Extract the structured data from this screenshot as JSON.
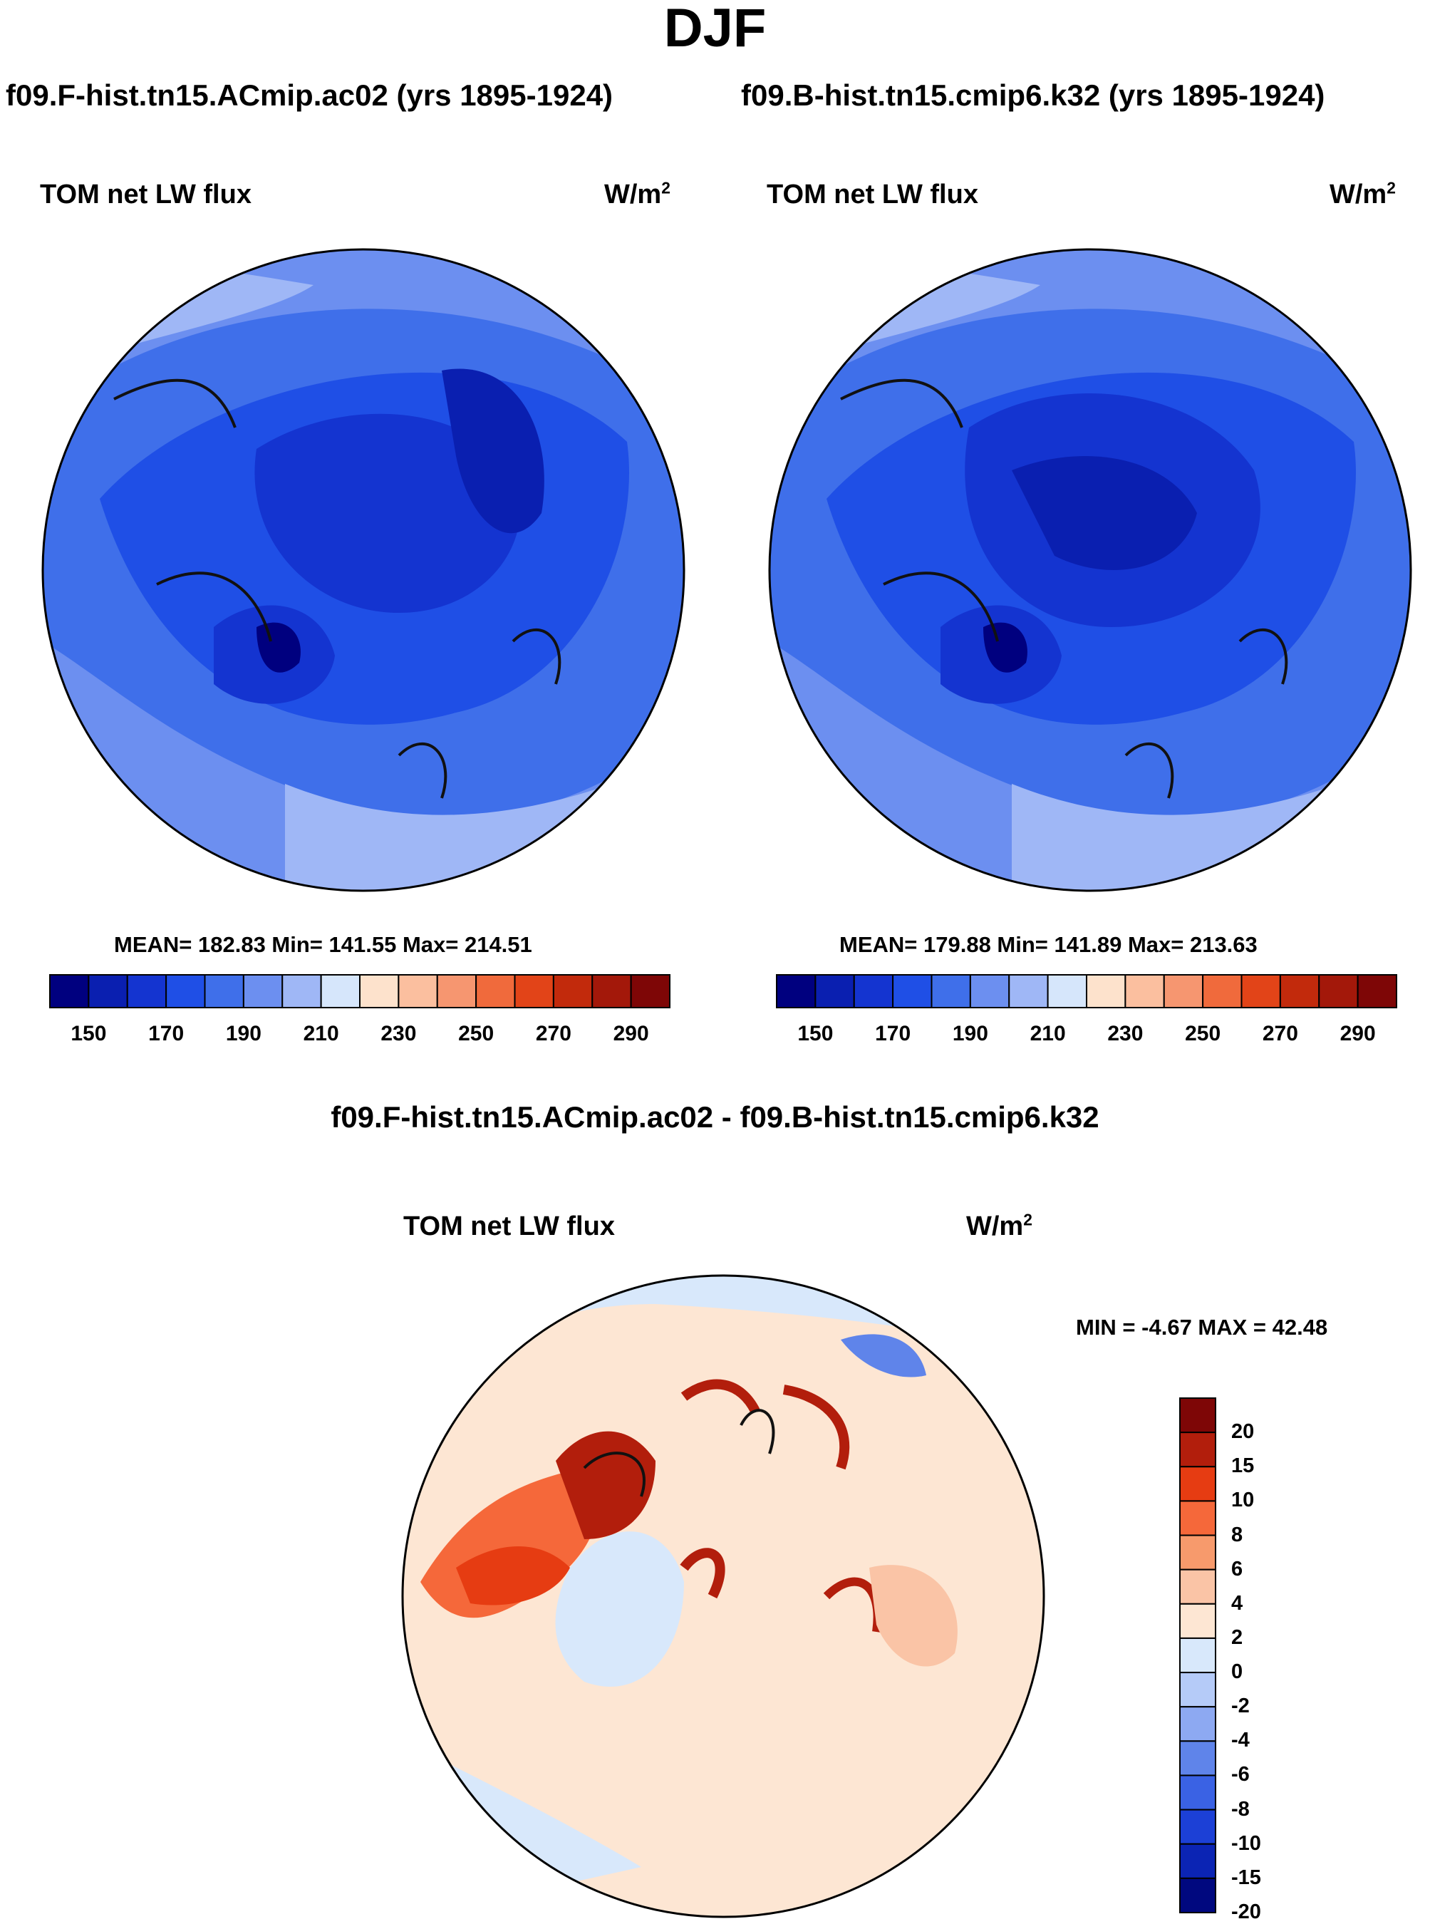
{
  "figure": {
    "title": "DJF",
    "difference_title": "f09.F-hist.tn15.ACmip.ac02 - f09.B-hist.tn15.cmip6.k32"
  },
  "panels": [
    {
      "case_title": "f09.F-hist.tn15.ACmip.ac02 (yrs 1895-1924)",
      "variable": "TOM net LW flux",
      "units_base": "W/m",
      "units_exp": "2",
      "stats": "MEAN= 182.83  Min= 141.55  Max= 214.51"
    },
    {
      "case_title": "f09.B-hist.tn15.cmip6.k32 (yrs 1895-1924)",
      "variable": "TOM net LW flux",
      "units_base": "W/m",
      "units_exp": "2",
      "stats": "MEAN= 179.88  Min= 141.89  Max= 213.63"
    },
    {
      "variable": "TOM net LW flux",
      "units_base": "W/m",
      "units_exp": "2",
      "stats": "MIN =  -4.67 MAX =  42.48"
    }
  ],
  "abs_colorbar": {
    "colors": [
      "#00007f",
      "#0a1fb0",
      "#1434d0",
      "#1f4fe6",
      "#3f6fea",
      "#6c8ff0",
      "#9fb7f6",
      "#d6e6fb",
      "#fde2cc",
      "#fbbf9f",
      "#f69670",
      "#f06a3c",
      "#e24418",
      "#c22a0c",
      "#a3180a",
      "#7e0606"
    ],
    "tick_labels": [
      "150",
      "170",
      "190",
      "210",
      "230",
      "250",
      "270",
      "290"
    ]
  },
  "diff_colorbar": {
    "colors": [
      "#7e0606",
      "#b21e0c",
      "#e63c12",
      "#f5683a",
      "#f79a6c",
      "#fac4a6",
      "#fde6d3",
      "#d8e8fb",
      "#b5cbf8",
      "#8da9f2",
      "#5f84ea",
      "#3a62e4",
      "#1c40d6",
      "#0b24b4",
      "#00087f"
    ],
    "tick_labels": [
      "20",
      "15",
      "10",
      "8",
      "6",
      "4",
      "2",
      "0",
      "-2",
      "-4",
      "-6",
      "-8",
      "-10",
      "-15",
      "-20"
    ]
  }
}
